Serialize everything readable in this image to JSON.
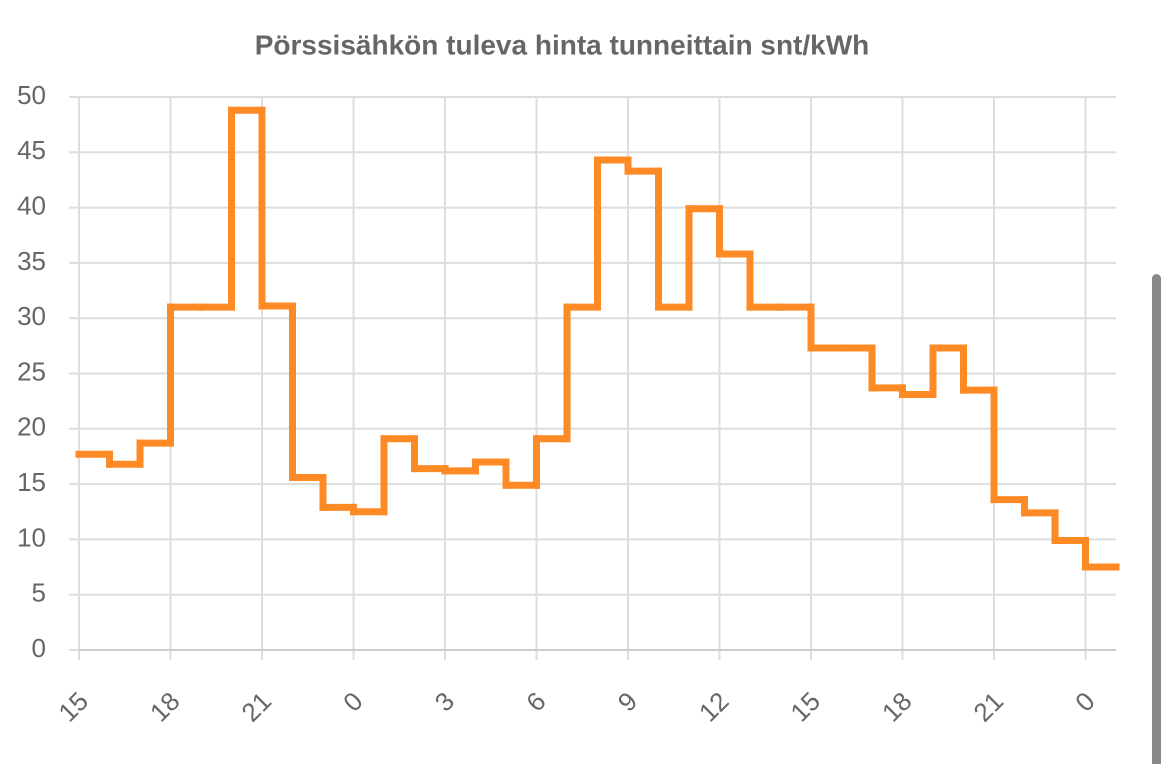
{
  "chart_data": {
    "type": "line",
    "step": "post",
    "title": "Pörssisähkön tuleva hinta tunneittain snt/kWh",
    "color": "#fd8a25",
    "grid": true,
    "x": [
      0,
      1,
      2,
      3,
      4,
      5,
      6,
      7,
      8,
      9,
      10,
      11,
      12,
      13,
      14,
      15,
      16,
      17,
      18,
      19,
      20,
      21,
      22,
      23,
      24,
      25,
      26,
      27,
      28,
      29,
      30,
      31,
      32,
      33
    ],
    "values": [
      17.7,
      16.8,
      18.7,
      31.0,
      31.0,
      48.8,
      31.1,
      15.6,
      12.9,
      12.5,
      19.1,
      16.4,
      16.2,
      17.0,
      14.9,
      19.1,
      31.0,
      44.3,
      43.3,
      31.0,
      39.9,
      35.8,
      31.0,
      31.0,
      27.3,
      27.3,
      23.7,
      23.1,
      27.3,
      23.5,
      13.6,
      12.4,
      9.9,
      7.5
    ],
    "xlim": [
      0,
      34
    ],
    "xticks": [
      {
        "value": 0,
        "label": "15"
      },
      {
        "value": 3,
        "label": "18"
      },
      {
        "value": 6,
        "label": "21"
      },
      {
        "value": 9,
        "label": "0"
      },
      {
        "value": 12,
        "label": "3"
      },
      {
        "value": 15,
        "label": "6"
      },
      {
        "value": 18,
        "label": "9"
      },
      {
        "value": 21,
        "label": "12"
      },
      {
        "value": 24,
        "label": "15"
      },
      {
        "value": 27,
        "label": "18"
      },
      {
        "value": 30,
        "label": "21"
      },
      {
        "value": 33,
        "label": "0"
      }
    ],
    "ylim": [
      0,
      50
    ],
    "yticks": [
      0,
      5,
      10,
      15,
      20,
      25,
      30,
      35,
      40,
      45,
      50
    ]
  }
}
